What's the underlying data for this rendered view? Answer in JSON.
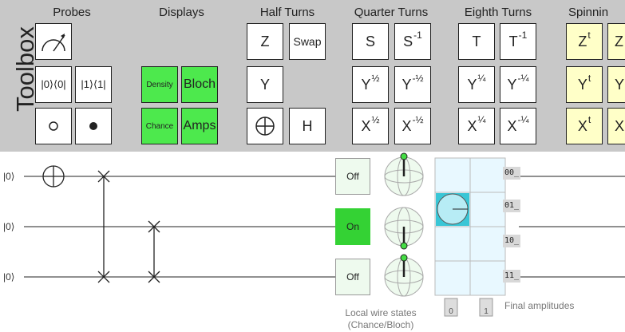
{
  "toolbox": {
    "title": "Toolbox",
    "groups": {
      "probes": "Probes",
      "displays": "Displays",
      "half_turns": "Half Turns",
      "quarter_turns": "Quarter Turns",
      "eighth_turns": "Eighth Turns",
      "spinning": "Spinnin"
    },
    "gates": {
      "measure_icon": "meter-icon",
      "post_select_off": "|0⟩⟨0|",
      "post_select_on": "|1⟩⟨1|",
      "control_off_icon": "open-circle-icon",
      "control_on_icon": "filled-circle-icon",
      "density": "Density",
      "bloch": "Bloch",
      "chance": "Chance",
      "amps": "Amps",
      "z": "Z",
      "swap": "Swap",
      "y": "Y",
      "not_icon": "xor-icon",
      "h": "H",
      "s": "S",
      "s_inv_base": "S",
      "s_inv_exp": "-1",
      "y_half_base": "Y",
      "y_half_exp": "½",
      "y_neg_half_base": "Y",
      "y_neg_half_exp": "-½",
      "x_half_base": "X",
      "x_half_exp": "½",
      "x_neg_half_base": "X",
      "x_neg_half_exp": "-½",
      "t": "T",
      "t_inv_base": "T",
      "t_inv_exp": "-1",
      "y_quarter_base": "Y",
      "y_quarter_exp": "¼",
      "y_neg_quarter_base": "Y",
      "y_neg_quarter_exp": "-¼",
      "x_quarter_base": "X",
      "x_quarter_exp": "¼",
      "x_neg_quarter_base": "X",
      "x_neg_quarter_exp": "-¼",
      "zt_base": "Z",
      "zt_exp": "t",
      "z_partial": "Z",
      "yt_base": "Y",
      "yt_exp": "t",
      "y_partial": "Y",
      "xt_base": "X",
      "xt_exp": "t",
      "x_partial": "X"
    }
  },
  "circuit": {
    "wires": [
      {
        "label": "|0⟩",
        "state": "Off"
      },
      {
        "label": "|0⟩",
        "state": "On"
      },
      {
        "label": "|0⟩",
        "state": "Off"
      }
    ],
    "amplitude_labels": [
      "00_",
      "01_",
      "10_",
      "11_"
    ],
    "amplitude_values": {
      "00": 0,
      "01": 1,
      "10": 0,
      "11": 0
    },
    "local_states_caption_line1": "Local wire states",
    "local_states_caption_line2": "(Chance/Bloch)",
    "final_amplitudes_caption": "Final amplitudes",
    "col_label_0": "0",
    "col_label_1": "1"
  },
  "colors": {
    "toolbox_bg": "#c8c8c8",
    "display_green": "#4de94d",
    "spinning_yellow": "#ffffc8",
    "state_on": "#34d234",
    "amplitude_cyan": "#39c6d6",
    "bloch_vector": "#44dd44"
  }
}
